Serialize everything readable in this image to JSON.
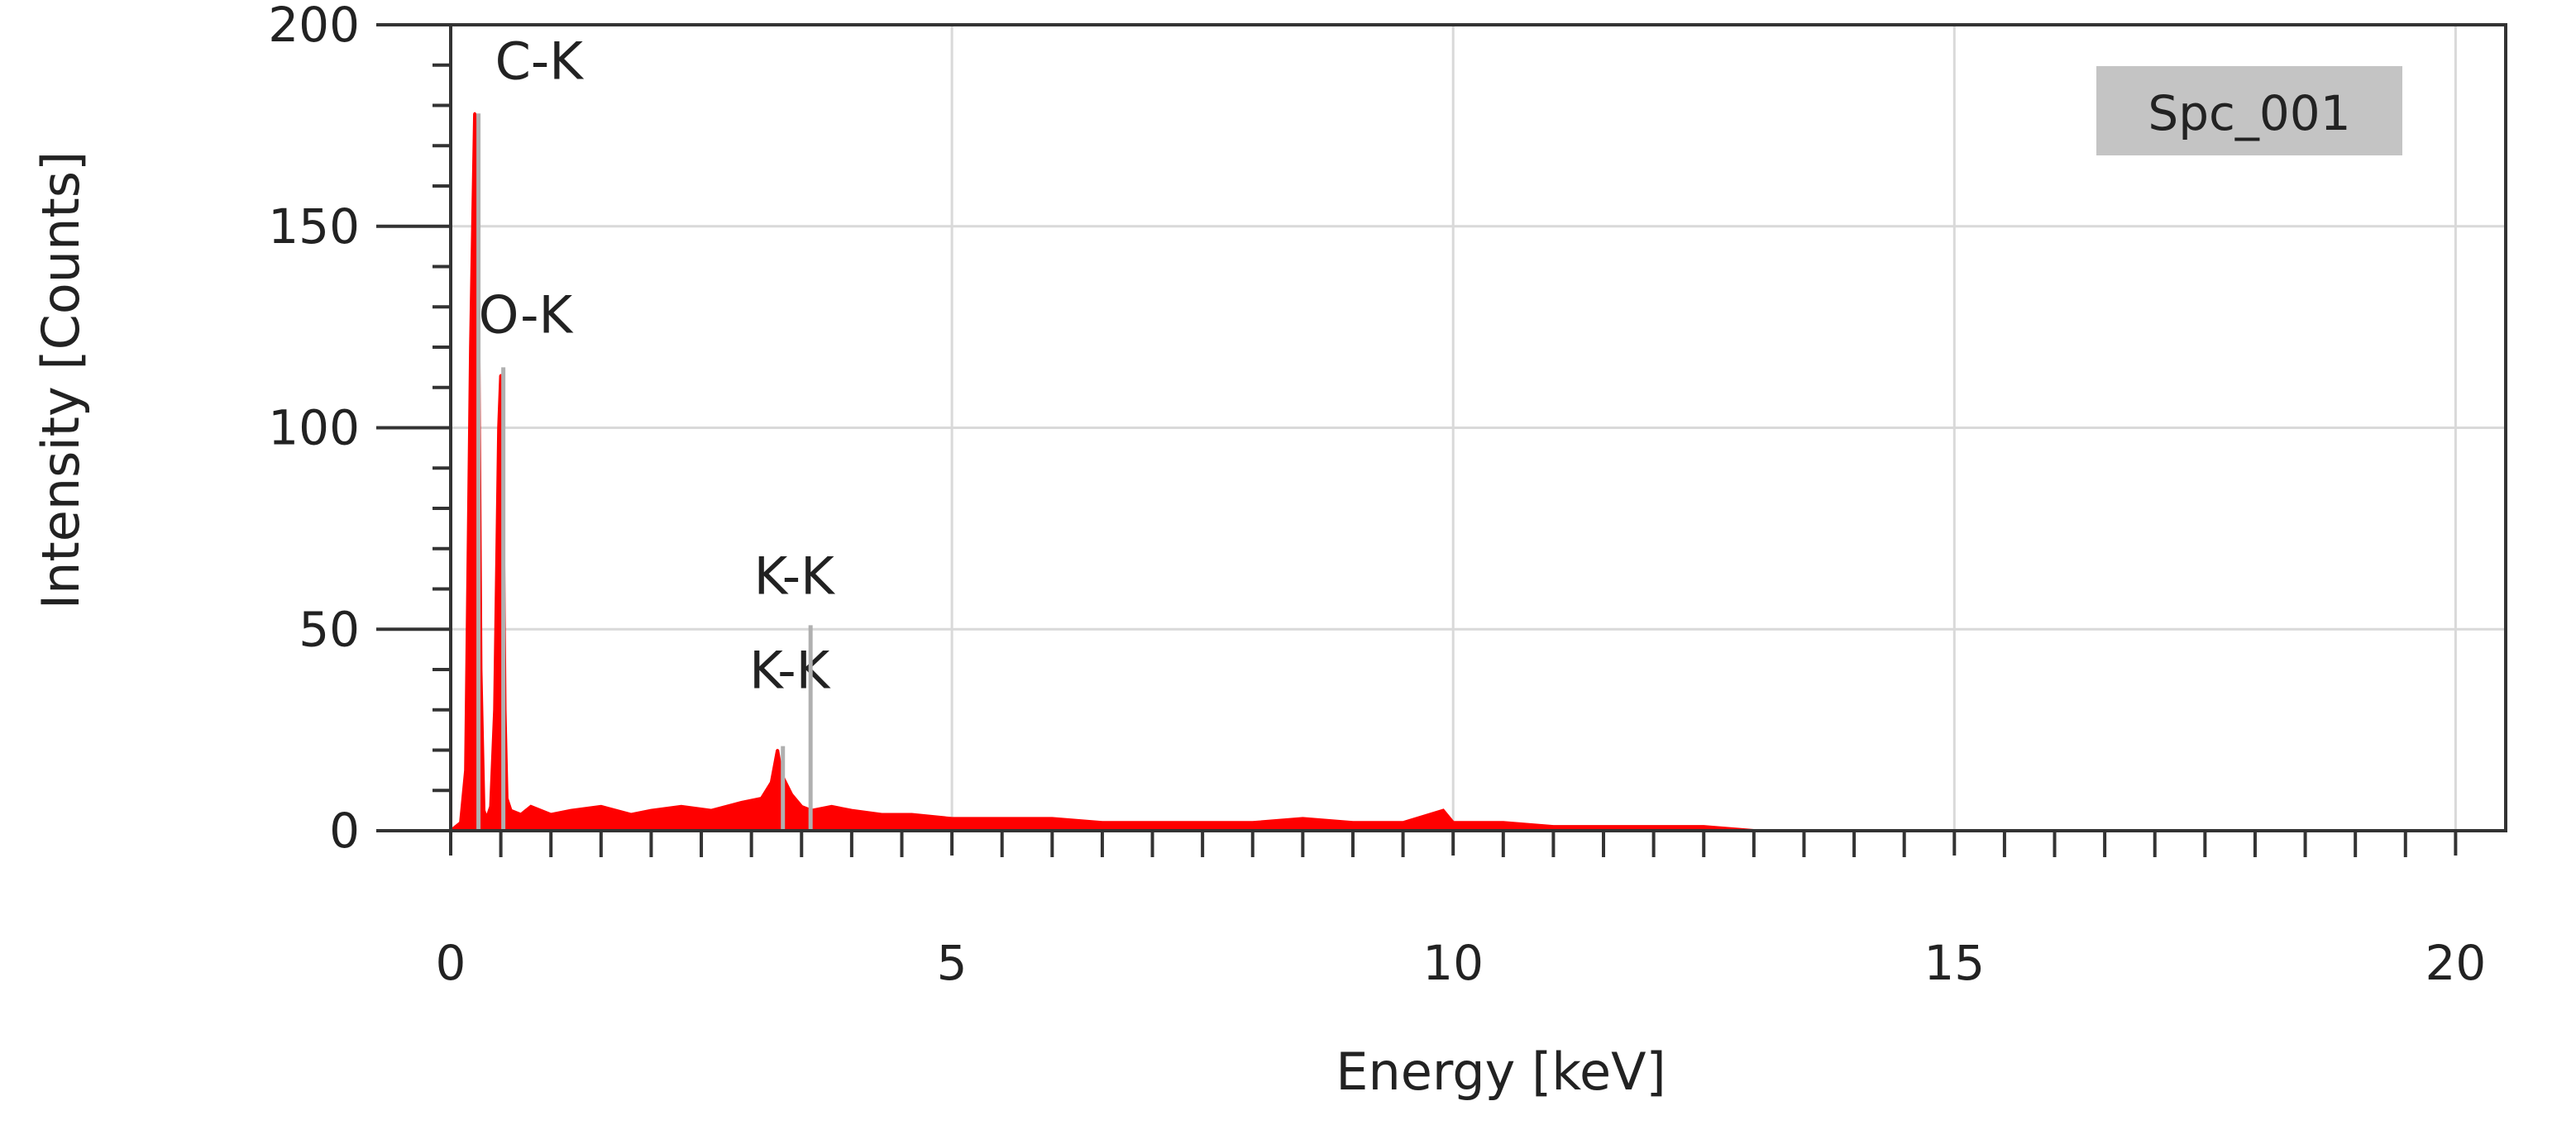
{
  "chart_data": {
    "type": "line",
    "xlabel": "Energy [keV]",
    "ylabel": "Intensity [Counts]",
    "xlim": [
      0,
      20.5
    ],
    "ylim": [
      0,
      200
    ],
    "x_ticks": [
      0,
      5,
      10,
      15,
      20
    ],
    "y_ticks": [
      0,
      50,
      100,
      150,
      200
    ],
    "grid": true,
    "legend": {
      "label": "Spc_001",
      "position": "top-right"
    },
    "colors": {
      "spectrum": "#ff0000",
      "marker": "#b0b0b0",
      "legend_bg": "#c4c4c4",
      "grid": "#d9d9d9",
      "axis": "#333333"
    },
    "series": [
      {
        "name": "Spc_001",
        "x": [
          0.0,
          0.1,
          0.15,
          0.2,
          0.24,
          0.26,
          0.28,
          0.3,
          0.33,
          0.36,
          0.4,
          0.44,
          0.48,
          0.5,
          0.52,
          0.54,
          0.56,
          0.6,
          0.7,
          0.8,
          1.0,
          1.2,
          1.5,
          1.8,
          2.0,
          2.3,
          2.6,
          2.9,
          3.1,
          3.2,
          3.26,
          3.3,
          3.4,
          3.5,
          3.6,
          3.8,
          4.0,
          4.3,
          4.6,
          5.0,
          5.5,
          6.0,
          6.5,
          7.0,
          7.5,
          8.0,
          8.5,
          9.0,
          9.5,
          9.9,
          10.0,
          10.5,
          11.0,
          11.5,
          12.0,
          12.5,
          13.0,
          13.5,
          14.0,
          16.0,
          18.0,
          20.0,
          20.5
        ],
        "y": [
          0,
          2,
          15,
          120,
          178,
          165,
          120,
          40,
          5,
          3,
          6,
          30,
          100,
          113,
          90,
          30,
          8,
          5,
          4,
          6,
          4,
          5,
          6,
          4,
          5,
          6,
          5,
          7,
          8,
          12,
          20,
          14,
          9,
          6,
          5,
          6,
          5,
          4,
          4,
          3,
          3,
          3,
          2,
          2,
          2,
          2,
          3,
          2,
          2,
          5,
          2,
          2,
          1,
          1,
          1,
          1,
          0,
          0,
          0,
          0,
          0,
          0,
          0
        ]
      }
    ],
    "markers": [
      {
        "label": "C-K",
        "x": 0.277,
        "y": 178
      },
      {
        "label": "O-K",
        "x": 0.525,
        "y": 115
      },
      {
        "label": "K-K",
        "x": 3.314,
        "y": 21
      },
      {
        "label": "K-K",
        "x": 3.59,
        "y": 51
      }
    ]
  }
}
